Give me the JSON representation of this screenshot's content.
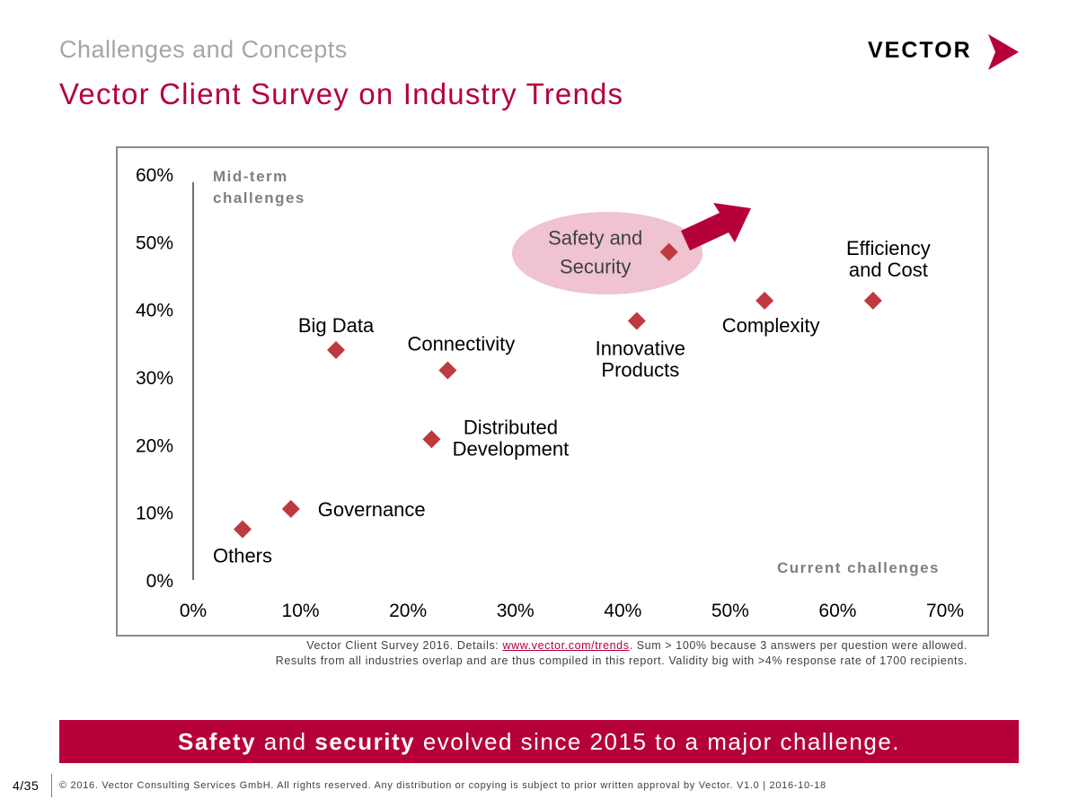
{
  "header": {
    "subtitle": "Challenges and Concepts",
    "title": "Vector Client Survey on Industry Trends",
    "logo_text": "VECTOR"
  },
  "colors": {
    "accent": "#b5003a",
    "marker": "#be3a3f",
    "highlight_ellipse": "#efc3cf",
    "grey_text": "#a6a6a6",
    "axis_title": "#7f7f7f"
  },
  "chart_data": {
    "type": "scatter",
    "xlabel": "Current challenges",
    "ylabel": "Mid-term challenges",
    "xlim": [
      0,
      70
    ],
    "ylim": [
      0,
      60
    ],
    "x_ticks": [
      "0%",
      "10%",
      "20%",
      "30%",
      "40%",
      "50%",
      "60%",
      "70%"
    ],
    "y_ticks": [
      "0%",
      "10%",
      "20%",
      "30%",
      "40%",
      "50%",
      "60%"
    ],
    "grid": false,
    "points": [
      {
        "label": "Others",
        "x": 4.6,
        "y": 7.5
      },
      {
        "label": "Governance",
        "x": 9.1,
        "y": 10.5
      },
      {
        "label": "Big Data",
        "x": 13.3,
        "y": 34.0
      },
      {
        "label": "Connectivity",
        "x": 23.7,
        "y": 31.0
      },
      {
        "label": "Distributed Development",
        "x": 22.2,
        "y": 20.8
      },
      {
        "label": "Innovative Products",
        "x": 41.3,
        "y": 38.3
      },
      {
        "label": "Safety and Security",
        "x": 44.3,
        "y": 48.5,
        "highlighted": true
      },
      {
        "label": "Complexity",
        "x": 53.2,
        "y": 41.3
      },
      {
        "label": "Efficiency and Cost",
        "x": 63.3,
        "y": 41.3
      }
    ]
  },
  "footnote": {
    "line1_prefix": "Vector Client Survey 2016. Details: ",
    "link": "www.vector.com/trends",
    "line1_suffix": ".  Sum > 100% because 3 answers per question were allowed.",
    "line2": "Results from all industries overlap and are thus compiled in this report. Validity big with >4% response rate of 1700 recipients."
  },
  "banner": {
    "bold1": "Safety",
    "and": " and ",
    "bold2": "security",
    "rest": " evolved since 2015 to a major challenge."
  },
  "footer": {
    "page": "4/35",
    "copyright": "© 2016. Vector Consulting Services GmbH. All rights reserved. Any distribution or copying is subject to prior written approval by Vector. V1.0 | 2016-10-18"
  }
}
